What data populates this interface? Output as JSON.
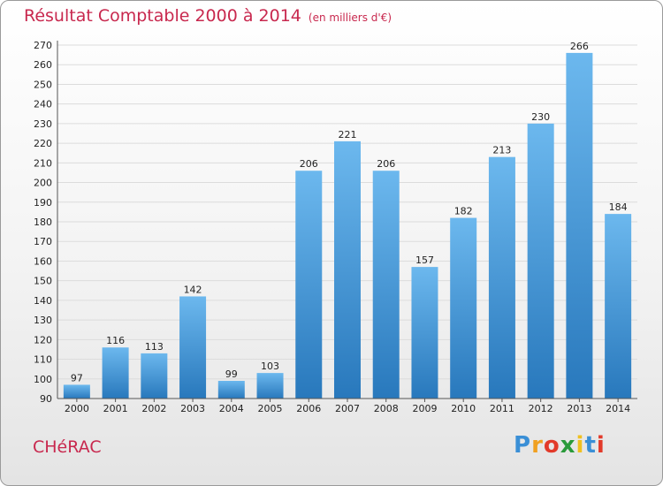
{
  "chart_data": {
    "type": "bar",
    "title": "Résultat Comptable 2000 à 2014",
    "subtitle": "(en milliers d'€)",
    "categories": [
      "2000",
      "2001",
      "2002",
      "2003",
      "2004",
      "2005",
      "2006",
      "2007",
      "2008",
      "2009",
      "2010",
      "2011",
      "2012",
      "2013",
      "2014"
    ],
    "values": [
      97,
      116,
      113,
      142,
      99,
      103,
      206,
      221,
      206,
      157,
      182,
      213,
      230,
      266,
      184
    ],
    "ylim": [
      90,
      270
    ],
    "yticks": [
      90,
      100,
      110,
      120,
      130,
      140,
      150,
      160,
      170,
      180,
      190,
      200,
      210,
      220,
      230,
      240,
      250,
      260,
      270
    ],
    "grid": true,
    "xlabel": "",
    "ylabel": ""
  },
  "commune": "CHéRAC",
  "logo": {
    "letters": [
      "P",
      "r",
      "o",
      "x",
      "i",
      "t",
      "i"
    ],
    "colors": [
      "#3a8fd6",
      "#f0a020",
      "#e23a2a",
      "#2a9a3a",
      "#f0c020",
      "#3a8fd6",
      "#e23a2a"
    ]
  },
  "colors": {
    "bar_top": "#6cb8ee",
    "bar_bottom": "#2878bc",
    "accent": "#c8284e"
  }
}
